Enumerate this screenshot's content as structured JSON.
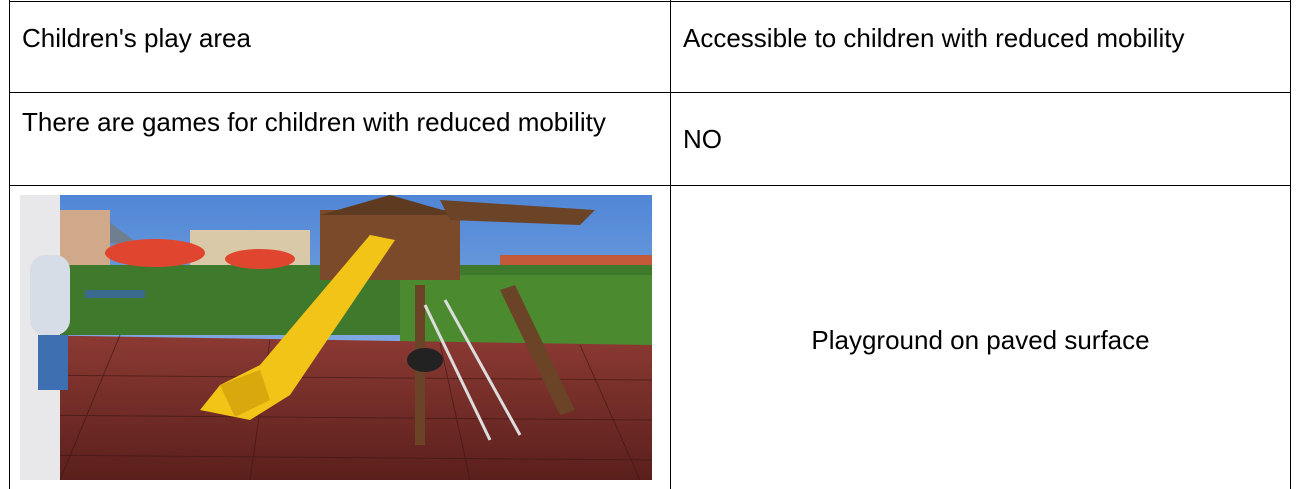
{
  "table": {
    "rows": [
      [
        "Children's play area",
        "Accessible to children with reduced mobility"
      ],
      [
        "There are games for children with reduced mobility",
        "NO"
      ]
    ],
    "photo_description": "Playground on paved surface"
  }
}
